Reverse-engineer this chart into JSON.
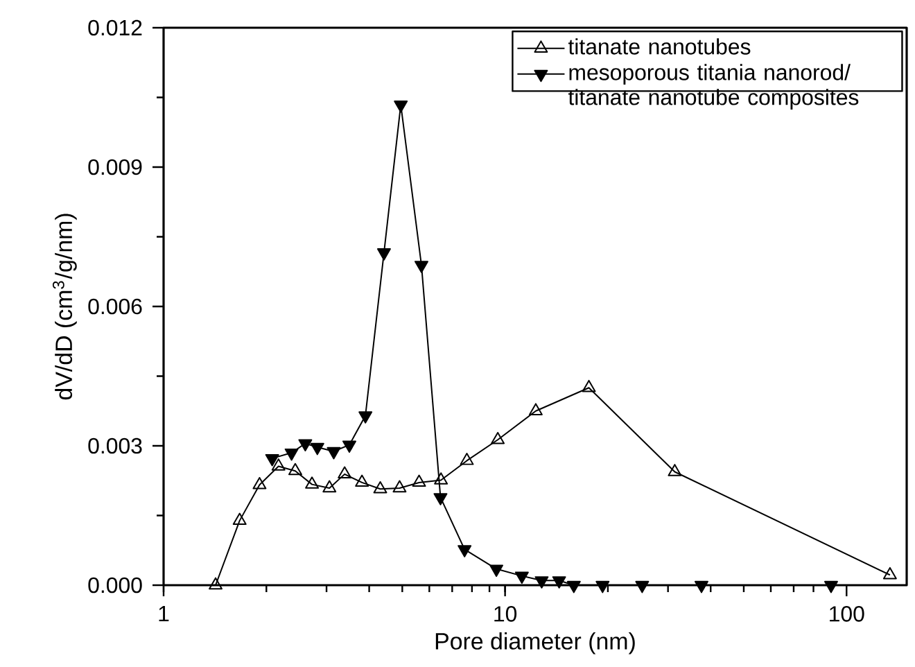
{
  "chart_data": {
    "type": "line",
    "xlabel": "Pore diameter (nm)",
    "ylabel": "dV/dD (cm$^{3}$/g/nm)",
    "log": "x",
    "xlim": [
      1,
      150
    ],
    "xticks": [
      1,
      10,
      100
    ],
    "ylim": [
      0,
      0.012
    ],
    "yticks": [
      {
        "value": 0,
        "label": "0.000"
      },
      {
        "value": 0.003,
        "label": "0.003"
      },
      {
        "value": 0.006,
        "label": "0.006"
      },
      {
        "value": 0.009,
        "label": "0.009"
      },
      {
        "value": 0.012,
        "label": "0.012"
      }
    ],
    "legend": "top right",
    "marker": "triangle",
    "grid": false,
    "series": [
      {
        "name": "titanate nanotubes",
        "color": "#000000",
        "x": [
          1.42,
          1.67,
          1.91,
          2.17,
          2.43,
          2.72,
          3.06,
          3.39,
          3.81,
          4.31,
          4.91,
          5.6,
          6.49,
          7.73,
          9.52,
          12.3,
          17.6,
          31.4,
          134
        ],
        "values": [
          0,
          0.00139,
          0.00216,
          0.00256,
          0.00246,
          0.00217,
          0.00209,
          0.00239,
          0.00221,
          0.00207,
          0.00209,
          0.00221,
          0.00226,
          0.00268,
          0.00313,
          0.00375,
          0.00425,
          0.00244,
          0.00022
        ]
      },
      {
        "name": "mesoporous titania nanorod/ titanate nanotube composites",
        "color": "#000000",
        "x": [
          2.08,
          2.37,
          2.6,
          2.82,
          3.15,
          3.5,
          3.9,
          4.42,
          4.95,
          5.69,
          6.47,
          7.61,
          9.43,
          11.2,
          12.8,
          14.4,
          15.9,
          19.3,
          25.2,
          37.6,
          90.1
        ],
        "values": [
          0.00273,
          0.00285,
          0.00305,
          0.00297,
          0.00288,
          0.00302,
          0.00365,
          0.00716,
          0.01034,
          0.00689,
          0.00189,
          0.00077,
          0.00035,
          0.0002,
          0.0001,
          0.0001,
          0,
          0,
          0,
          0,
          0
        ]
      }
    ]
  }
}
